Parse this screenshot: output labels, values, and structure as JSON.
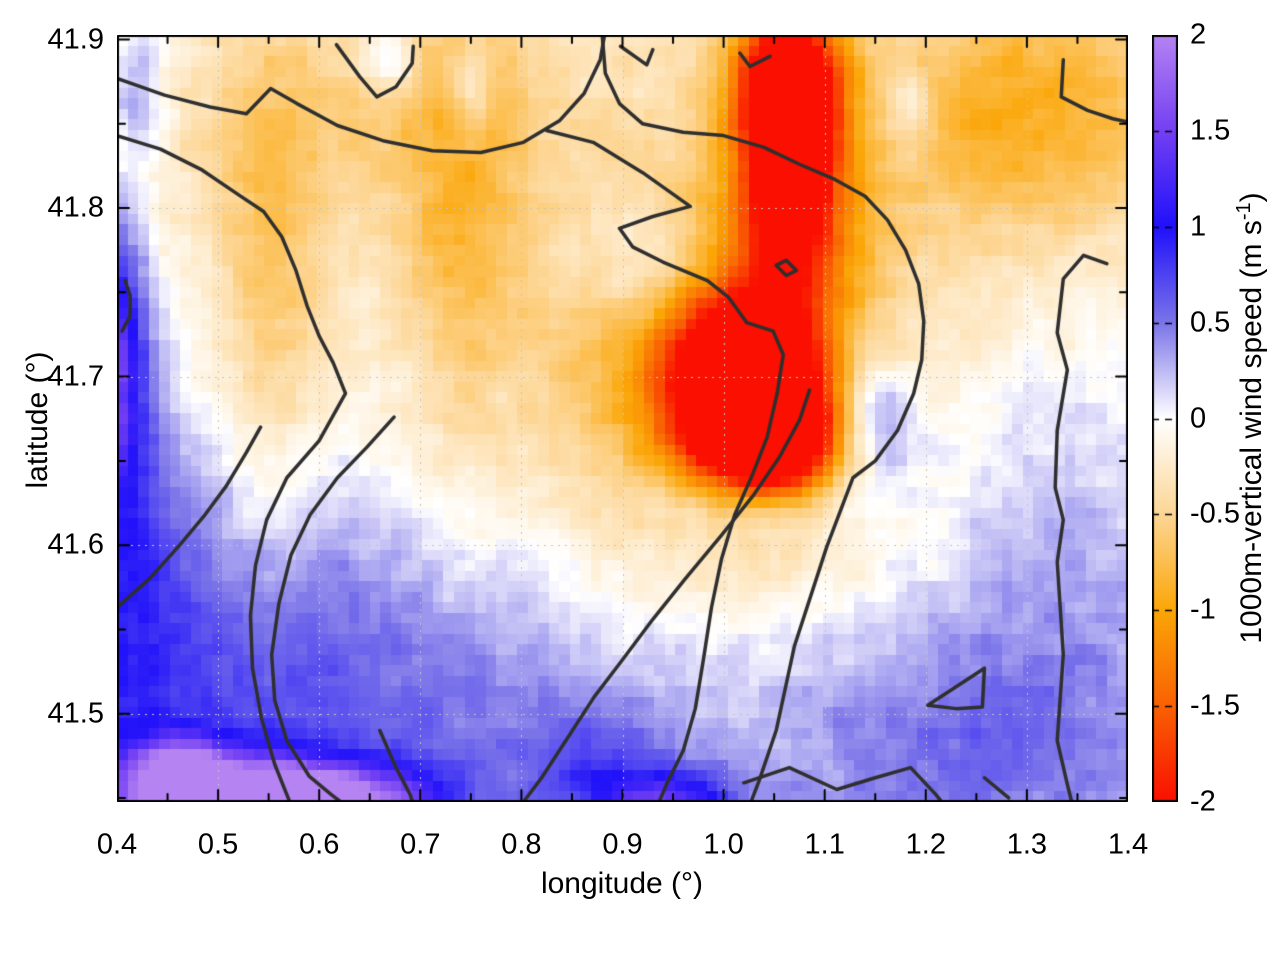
{
  "chart_data": {
    "type": "heatmap",
    "xlabel": "longitude (°)",
    "ylabel": "latitude (°)",
    "xlim": [
      0.4,
      1.4
    ],
    "ylim": [
      41.4476,
      41.9027
    ],
    "zlim": [
      -2,
      2
    ],
    "grid": true,
    "grid_style": "dotted",
    "x_ticks": {
      "values": [
        0.4,
        0.5,
        0.6,
        0.7,
        0.8,
        0.9,
        1.0,
        1.1,
        1.2,
        1.3,
        1.4
      ],
      "labels": [
        "0.4",
        "0.5",
        "0.6",
        "0.7",
        "0.8",
        "0.9",
        "1.0",
        "1.1",
        "1.2",
        "1.3",
        "1.4"
      ],
      "minor": [
        0.45,
        0.55,
        0.65,
        0.75,
        0.85,
        0.95,
        1.05,
        1.15,
        1.25,
        1.35
      ]
    },
    "y_ticks": {
      "values": [
        41.5,
        41.6,
        41.7,
        41.8,
        41.9
      ],
      "labels": [
        "41.5",
        "41.6",
        "41.7",
        "41.8",
        "41.9"
      ],
      "minor": [
        41.45,
        41.55,
        41.65,
        41.75,
        41.85
      ]
    },
    "x_gridlines": [
      0.5,
      0.6,
      0.7,
      0.8,
      0.9,
      1.0,
      1.1,
      1.2,
      1.3
    ],
    "y_gridlines": [
      41.5,
      41.6,
      41.7,
      41.8
    ],
    "palette_stops": [
      {
        "v": -2.0,
        "c": "#fa0f00"
      },
      {
        "v": -1.5,
        "c": "#f96103"
      },
      {
        "v": -1.0,
        "c": "#fba607"
      },
      {
        "v": -0.5,
        "c": "#fdd695"
      },
      {
        "v": 0.0,
        "c": "#ffffff"
      },
      {
        "v": 0.5,
        "c": "#7b74e9"
      },
      {
        "v": 1.0,
        "c": "#2011fa"
      },
      {
        "v": 1.5,
        "c": "#7440f3"
      },
      {
        "v": 2.0,
        "c": "#b583f2"
      }
    ],
    "field": {
      "comment": "approximate Gaussian decomposition of the wind field: [lon, lat, sigma_lon, sigma_lat, amplitude]; positive=updraft(blue), negative=downdraft(orange/red)",
      "grid_cells": [
        96,
        73
      ],
      "noise_amp": 0.17,
      "blobs": [
        [
          0.5,
          41.447,
          0.08,
          0.02,
          1.9
        ],
        [
          0.462,
          41.468,
          0.03,
          0.014,
          1.0
        ],
        [
          0.63,
          41.45,
          0.07,
          0.013,
          1.3
        ],
        [
          0.56,
          41.452,
          0.04,
          0.01,
          0.7
        ],
        [
          0.95,
          41.448,
          0.045,
          0.012,
          1.0
        ],
        [
          0.398,
          41.715,
          0.022,
          0.055,
          1.3
        ],
        [
          0.4,
          41.6,
          0.05,
          0.1,
          0.5
        ],
        [
          0.52,
          41.55,
          0.18,
          0.1,
          0.42
        ],
        [
          0.75,
          41.52,
          0.25,
          0.08,
          0.22
        ],
        [
          1.25,
          41.48,
          0.12,
          0.05,
          0.35
        ],
        [
          1.33,
          41.6,
          0.09,
          0.09,
          0.3
        ],
        [
          1.15,
          41.675,
          0.03,
          0.028,
          0.8
        ],
        [
          1.04,
          41.624,
          0.065,
          0.016,
          0.7
        ],
        [
          0.92,
          41.77,
          0.045,
          0.025,
          0.5
        ],
        [
          1.02,
          41.695,
          0.048,
          0.032,
          -2.6
        ],
        [
          1.05,
          41.66,
          0.045,
          0.028,
          -1.9
        ],
        [
          1.0,
          41.7,
          0.1,
          0.07,
          -0.9
        ],
        [
          1.065,
          41.845,
          0.028,
          0.05,
          -2.0
        ],
        [
          1.06,
          41.878,
          0.04,
          0.028,
          -1.3
        ],
        [
          1.07,
          41.8,
          0.05,
          0.05,
          -0.9
        ],
        [
          1.3,
          41.86,
          0.12,
          0.055,
          -0.75
        ],
        [
          0.55,
          41.75,
          0.035,
          0.1,
          -0.45
        ],
        [
          0.74,
          41.8,
          0.04,
          0.09,
          -0.45
        ],
        [
          0.85,
          41.6,
          0.25,
          0.12,
          -0.25
        ],
        [
          0.65,
          41.86,
          0.15,
          0.05,
          -0.3
        ],
        [
          0.42,
          41.87,
          0.02,
          0.03,
          0.5
        ],
        [
          0.67,
          41.888,
          0.02,
          0.015,
          0.55
        ],
        [
          0.75,
          41.87,
          0.015,
          0.02,
          0.45
        ],
        [
          1.18,
          41.86,
          0.022,
          0.02,
          0.45
        ],
        [
          0.88,
          41.46,
          0.05,
          0.03,
          0.45
        ],
        [
          0.9,
          41.82,
          0.5,
          0.12,
          -0.28
        ],
        [
          0.7,
          41.47,
          0.5,
          0.08,
          0.3
        ]
      ]
    },
    "contour_color": "#2f2f2f",
    "contours": [
      [
        [
          0.4,
          41.877
        ],
        [
          0.447,
          41.867
        ],
        [
          0.492,
          41.86
        ],
        [
          0.528,
          41.856
        ],
        [
          0.552,
          41.871
        ],
        [
          0.578,
          41.862
        ],
        [
          0.618,
          41.849
        ],
        [
          0.663,
          41.84
        ],
        [
          0.712,
          41.834
        ],
        [
          0.76,
          41.833
        ],
        [
          0.802,
          41.839
        ],
        [
          0.838,
          41.852
        ],
        [
          0.862,
          41.868
        ],
        [
          0.878,
          41.888
        ],
        [
          0.882,
          41.902
        ]
      ],
      [
        [
          0.4,
          41.843
        ],
        [
          0.443,
          41.835
        ],
        [
          0.483,
          41.823
        ],
        [
          0.52,
          41.808
        ],
        [
          0.545,
          41.798
        ],
        [
          0.563,
          41.783
        ],
        [
          0.577,
          41.763
        ],
        [
          0.588,
          41.742
        ],
        [
          0.6,
          41.724
        ],
        [
          0.614,
          41.708
        ],
        [
          0.626,
          41.69
        ],
        [
          0.6,
          41.662
        ],
        [
          0.568,
          41.64
        ],
        [
          0.548,
          41.615
        ],
        [
          0.537,
          41.588
        ],
        [
          0.532,
          41.558
        ],
        [
          0.534,
          41.527
        ],
        [
          0.543,
          41.497
        ],
        [
          0.556,
          41.47
        ],
        [
          0.568,
          41.452
        ],
        [
          0.572,
          41.446
        ]
      ],
      [
        [
          0.4,
          41.563
        ],
        [
          0.432,
          41.58
        ],
        [
          0.462,
          41.6
        ],
        [
          0.487,
          41.618
        ],
        [
          0.508,
          41.635
        ],
        [
          0.528,
          41.655
        ],
        [
          0.542,
          41.67
        ]
      ],
      [
        [
          0.674,
          41.676
        ],
        [
          0.647,
          41.658
        ],
        [
          0.618,
          41.64
        ],
        [
          0.591,
          41.618
        ],
        [
          0.572,
          41.594
        ],
        [
          0.56,
          41.565
        ],
        [
          0.553,
          41.535
        ],
        [
          0.556,
          41.508
        ],
        [
          0.568,
          41.484
        ],
        [
          0.59,
          41.463
        ],
        [
          0.612,
          41.452
        ],
        [
          0.625,
          41.446
        ]
      ],
      [
        [
          0.617,
          41.897
        ],
        [
          0.64,
          41.878
        ],
        [
          0.657,
          41.866
        ],
        [
          0.676,
          41.872
        ],
        [
          0.692,
          41.886
        ],
        [
          0.693,
          41.896
        ]
      ],
      [
        [
          0.898,
          41.896
        ],
        [
          0.924,
          41.885
        ],
        [
          0.93,
          41.894
        ]
      ],
      [
        [
          1.016,
          41.892
        ],
        [
          1.026,
          41.884
        ],
        [
          1.046,
          41.89
        ]
      ],
      [
        [
          0.88,
          41.902
        ],
        [
          0.883,
          41.88
        ],
        [
          0.897,
          41.862
        ],
        [
          0.92,
          41.85
        ],
        [
          0.96,
          41.845
        ],
        [
          1.0,
          41.843
        ],
        [
          1.04,
          41.836
        ],
        [
          1.075,
          41.826
        ],
        [
          1.11,
          41.817
        ],
        [
          1.14,
          41.807
        ],
        [
          1.162,
          41.793
        ],
        [
          1.18,
          41.775
        ],
        [
          1.193,
          41.755
        ],
        [
          1.198,
          41.733
        ],
        [
          1.196,
          41.71
        ],
        [
          1.188,
          41.69
        ],
        [
          1.172,
          41.668
        ],
        [
          1.15,
          41.65
        ],
        [
          1.128,
          41.64
        ],
        [
          1.102,
          41.599
        ],
        [
          1.07,
          41.54
        ],
        [
          1.052,
          41.49
        ],
        [
          1.035,
          41.46
        ],
        [
          1.026,
          41.446
        ]
      ],
      [
        [
          0.8,
          41.446
        ],
        [
          0.82,
          41.462
        ],
        [
          0.845,
          41.485
        ],
        [
          0.872,
          41.51
        ],
        [
          0.9,
          41.532
        ],
        [
          0.93,
          41.556
        ],
        [
          0.962,
          41.58
        ],
        [
          0.998,
          41.606
        ],
        [
          1.03,
          41.63
        ],
        [
          1.055,
          41.652
        ],
        [
          1.075,
          41.674
        ],
        [
          1.085,
          41.692
        ]
      ],
      [
        [
          0.825,
          41.846
        ],
        [
          0.871,
          41.839
        ],
        [
          0.92,
          41.821
        ],
        [
          0.967,
          41.801
        ],
        [
          0.93,
          41.795
        ],
        [
          0.897,
          41.788
        ],
        [
          0.91,
          41.777
        ],
        [
          0.94,
          41.768
        ],
        [
          0.984,
          41.757
        ],
        [
          1.005,
          41.747
        ],
        [
          1.023,
          41.732
        ],
        [
          1.049,
          41.727
        ],
        [
          1.059,
          41.713
        ],
        [
          1.053,
          41.69
        ],
        [
          1.043,
          41.664
        ],
        [
          1.028,
          41.641
        ],
        [
          1.011,
          41.618
        ],
        [
          0.998,
          41.592
        ],
        [
          0.988,
          41.563
        ],
        [
          0.98,
          41.532
        ],
        [
          0.972,
          41.503
        ],
        [
          0.96,
          41.478
        ],
        [
          0.945,
          41.46
        ],
        [
          0.935,
          41.446
        ]
      ],
      [
        [
          1.379,
          41.767
        ],
        [
          1.356,
          41.772
        ],
        [
          1.336,
          41.758
        ],
        [
          1.33,
          41.726
        ],
        [
          1.34,
          41.704
        ],
        [
          1.33,
          41.668
        ],
        [
          1.328,
          41.634
        ],
        [
          1.336,
          41.615
        ],
        [
          1.33,
          41.59
        ],
        [
          1.336,
          41.535
        ],
        [
          1.33,
          41.484
        ],
        [
          1.34,
          41.458
        ],
        [
          1.345,
          41.446
        ]
      ],
      [
        [
          1.336,
          41.888
        ],
        [
          1.334,
          41.866
        ],
        [
          1.36,
          41.858
        ],
        [
          1.385,
          41.853
        ],
        [
          1.4,
          41.851
        ]
      ],
      [
        [
          1.202,
          41.505
        ],
        [
          1.258,
          41.527
        ],
        [
          1.256,
          41.504
        ],
        [
          1.23,
          41.503
        ],
        [
          1.202,
          41.505
        ]
      ],
      [
        [
          1.02,
          41.459
        ],
        [
          1.065,
          41.468
        ],
        [
          1.112,
          41.455
        ],
        [
          1.15,
          41.462
        ],
        [
          1.185,
          41.468
        ],
        [
          1.21,
          41.452
        ],
        [
          1.218,
          41.446
        ]
      ],
      [
        [
          1.258,
          41.462
        ],
        [
          1.282,
          41.45
        ]
      ],
      [
        [
          0.408,
          41.757
        ],
        [
          0.413,
          41.748
        ],
        [
          0.413,
          41.736
        ],
        [
          0.405,
          41.727
        ]
      ],
      [
        [
          1.052,
          41.766
        ],
        [
          1.062,
          41.76
        ],
        [
          1.072,
          41.763
        ],
        [
          1.062,
          41.769
        ],
        [
          1.052,
          41.766
        ]
      ],
      [
        [
          0.66,
          41.49
        ],
        [
          0.676,
          41.468
        ],
        [
          0.69,
          41.452
        ],
        [
          0.693,
          41.446
        ]
      ]
    ]
  },
  "colorbar": {
    "tick_values": [
      2,
      1.5,
      1,
      0.5,
      0,
      -0.5,
      -1,
      -1.5,
      -2
    ],
    "tick_labels": [
      "2",
      "1.5",
      "1",
      "0.5",
      "0",
      "-0.5",
      "-1",
      "-1.5",
      "-2"
    ],
    "label_prefix": "1000m-vertical wind speed (m s",
    "label_sup": "-1",
    "label_suffix": ")"
  },
  "colors": {
    "axis": "#000000",
    "gridline": "#c4c4c4",
    "contour": "#2f2f2f",
    "background": "#ffffff"
  }
}
